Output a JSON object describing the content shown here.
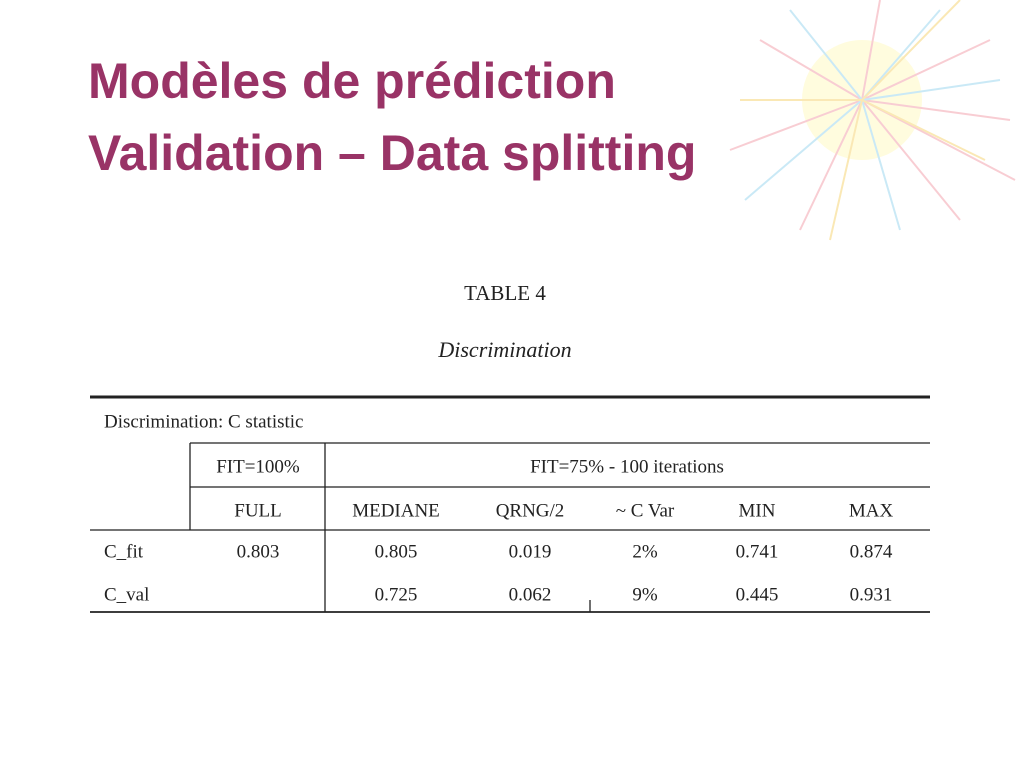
{
  "slide": {
    "title": [
      "Modèles de prédiction",
      "Validation – Data splitting"
    ],
    "table": {
      "caption": "TABLE 4",
      "subtitle": "Discrimination",
      "heading": "Discrimination: C statistic",
      "groups": [
        "FIT=100%",
        "FIT=75% - 100 iterations"
      ],
      "columns": [
        "FULL",
        "MEDIANE",
        "QRNG/2",
        "~ C Var",
        "MIN",
        "MAX"
      ],
      "rows": [
        {
          "label": "C_fit",
          "cells": [
            "0.803",
            "0.805",
            "0.019",
            "2%",
            "0.741",
            "0.874"
          ]
        },
        {
          "label": "C_val",
          "cells": [
            null,
            "0.725",
            "0.062",
            "9%",
            "0.445",
            "0.931"
          ]
        }
      ]
    }
  }
}
